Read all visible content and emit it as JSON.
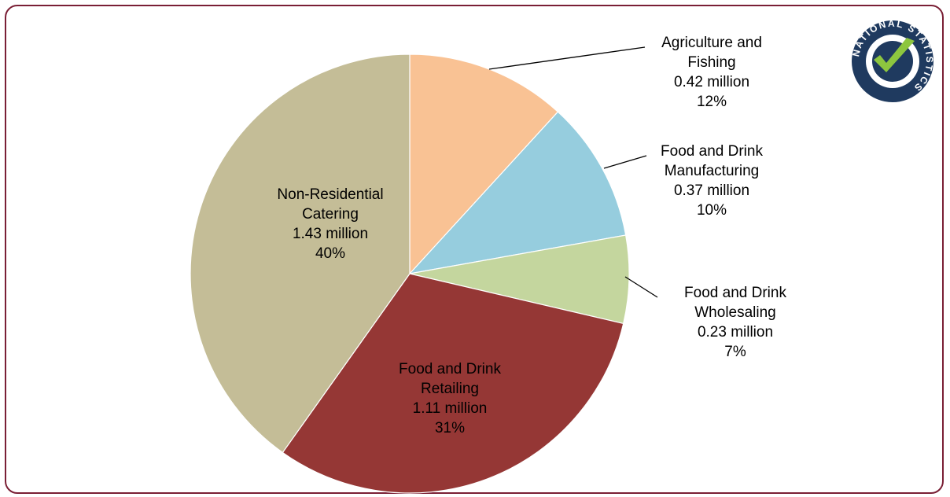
{
  "chart_data": {
    "type": "pie",
    "title": "",
    "start": "12 o'clock, clockwise",
    "slices": [
      {
        "lines": [
          "Agriculture and",
          "Fishing",
          "0.42 million",
          "12%"
        ],
        "value": 0.42,
        "percent": 12,
        "color": "#f9c294"
      },
      {
        "lines": [
          "Food and Drink",
          "Manufacturing",
          "0.37 million",
          "10%"
        ],
        "value": 0.37,
        "percent": 10,
        "color": "#96cdde"
      },
      {
        "lines": [
          "Food and Drink",
          "Wholesaling",
          "0.23 million",
          "7%"
        ],
        "value": 0.23,
        "percent": 7,
        "color": "#c4d69e"
      },
      {
        "lines": [
          "Food and Drink",
          "Retailing",
          "1.11 million",
          "31%"
        ],
        "value": 1.11,
        "percent": 31,
        "color": "#953735"
      },
      {
        "lines": [
          "Non-Residential",
          "Catering",
          "1.43 million",
          "40%"
        ],
        "value": 1.43,
        "percent": 40,
        "color": "#c4bd97"
      }
    ]
  },
  "logo": {
    "text": "NATIONAL STATISTICS",
    "colors": {
      "ring": "#1f3a5f",
      "tick": "#8dc63f",
      "inner": "#ffffff"
    }
  },
  "frame": {
    "border_color": "#7a1f35"
  }
}
